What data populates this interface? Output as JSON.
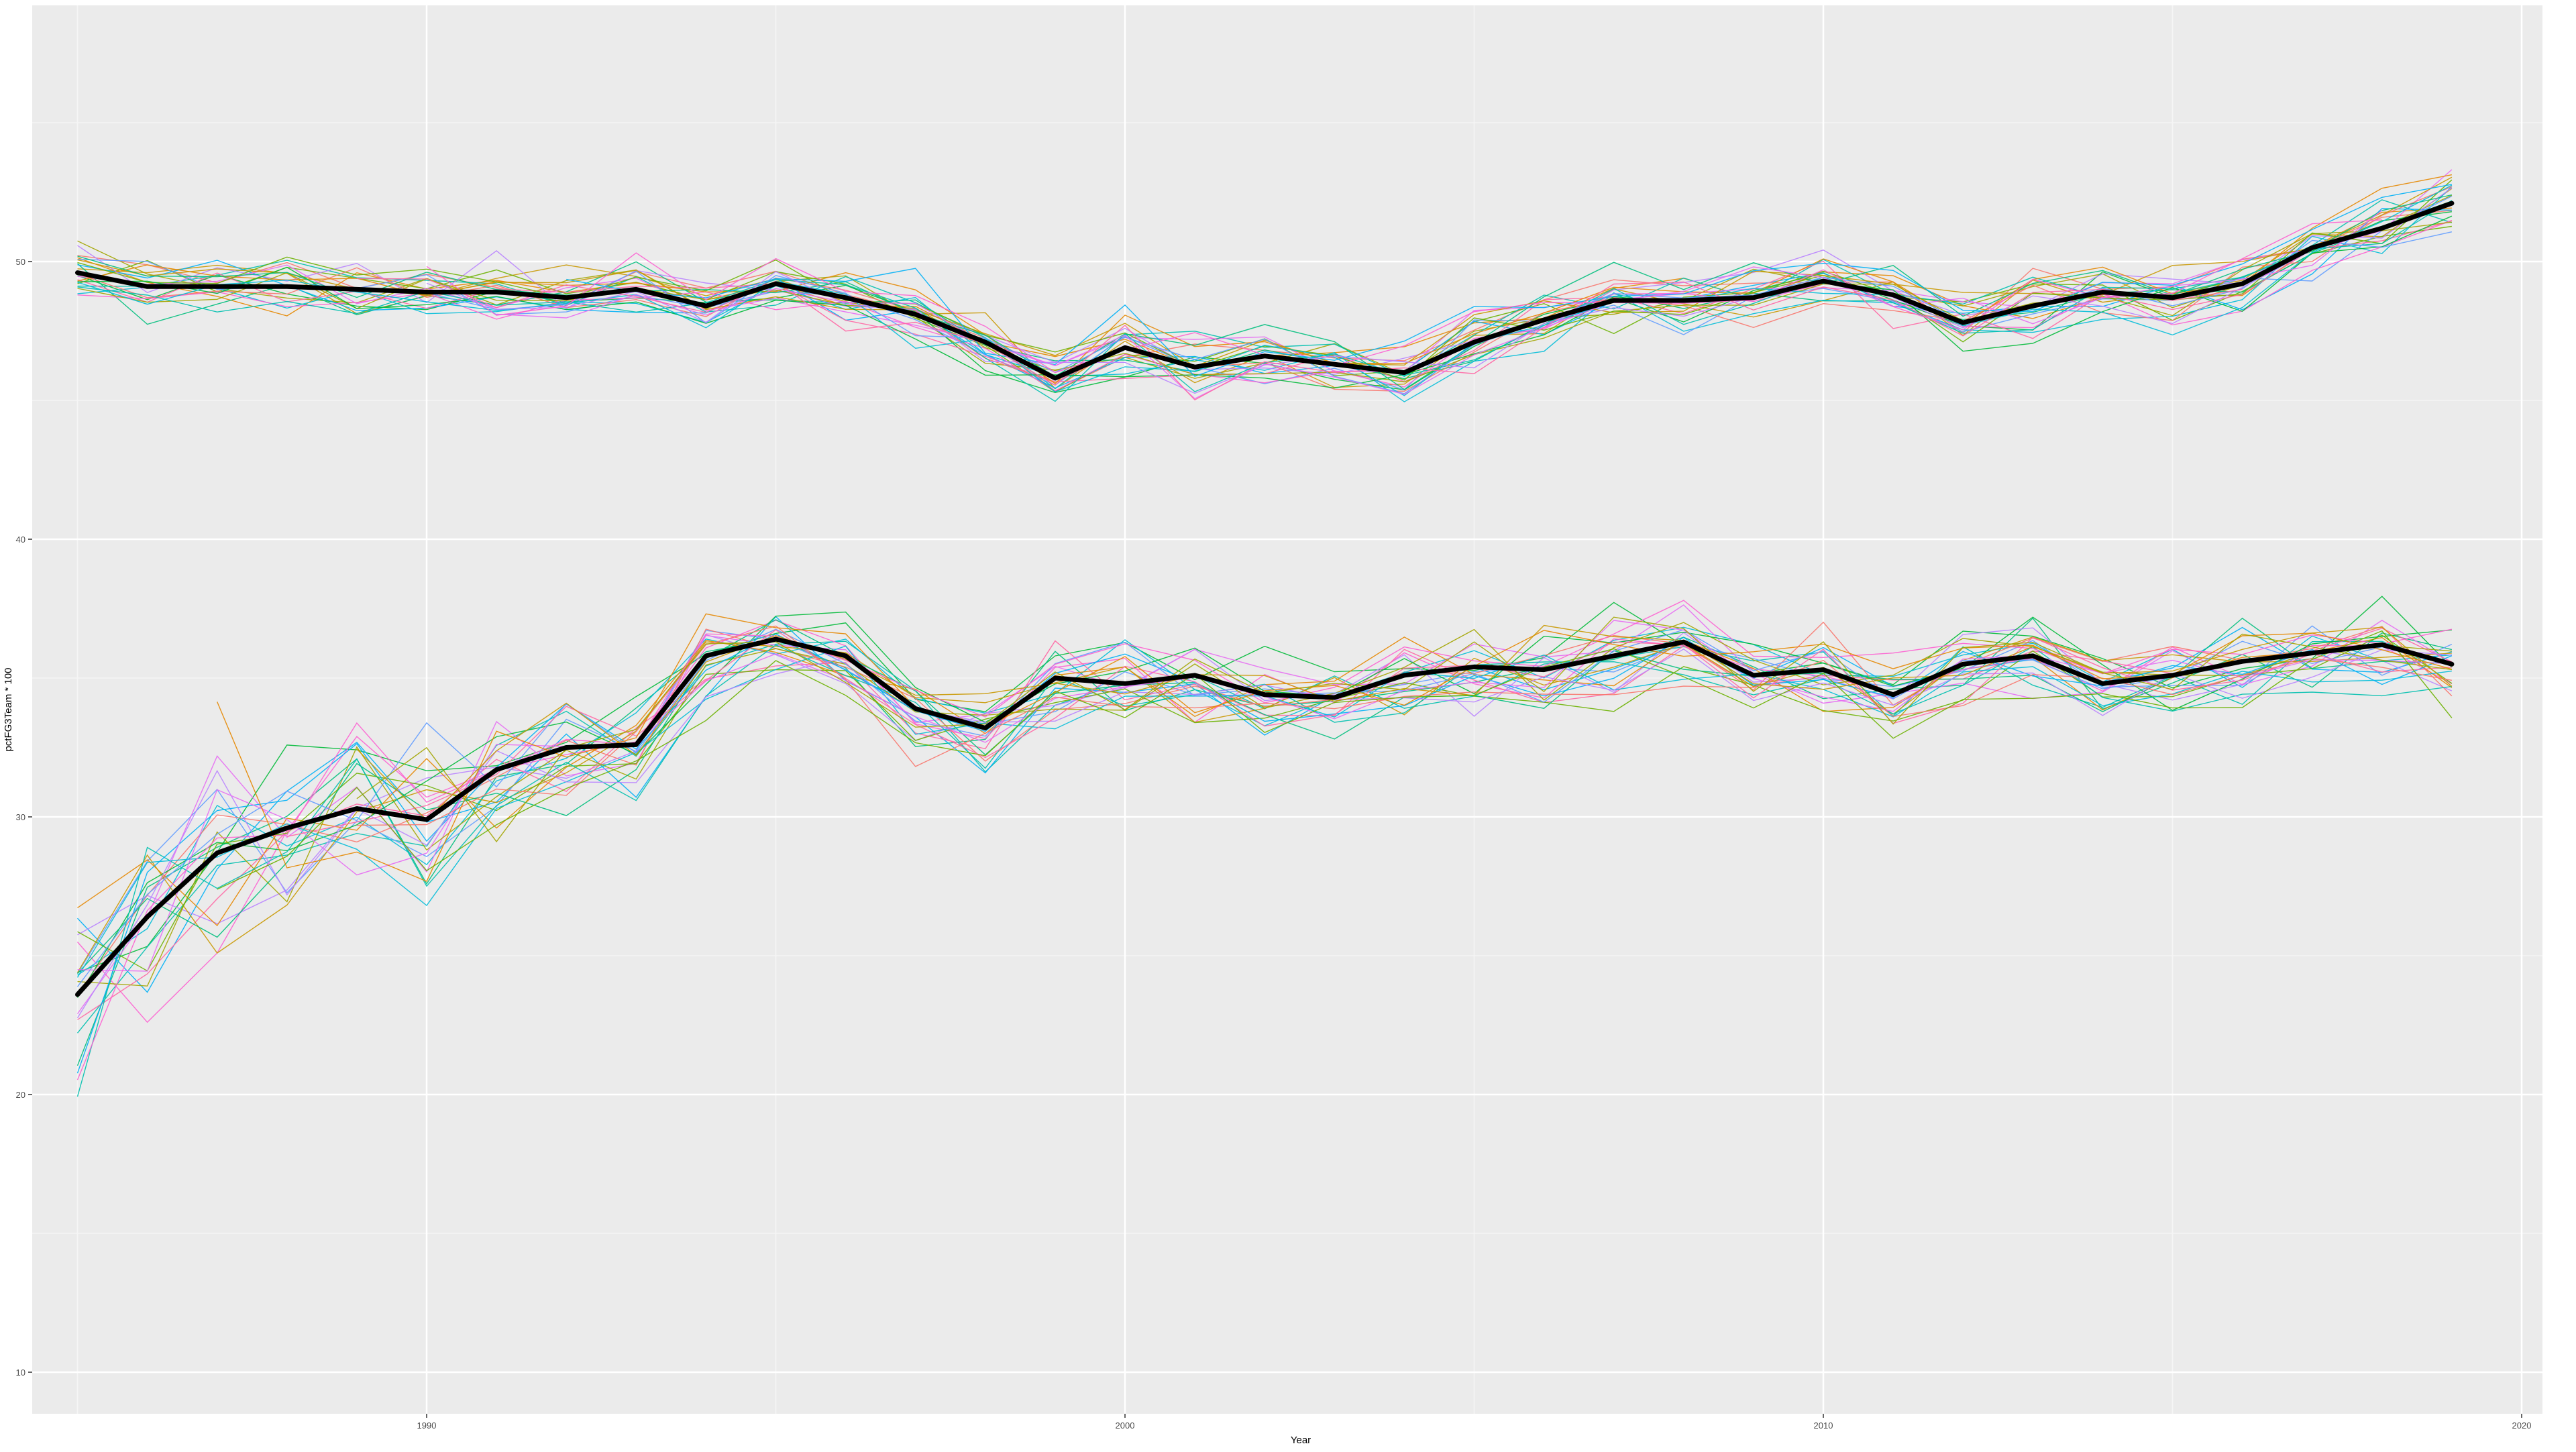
{
  "chart_data": {
    "type": "line",
    "title": "",
    "xlabel": "Year",
    "ylabel": "pctFG3Team * 100",
    "xlim": [
      1980,
      2020
    ],
    "ylim": [
      10,
      55
    ],
    "x_ticks": [
      1990,
      2000,
      2010,
      2020
    ],
    "y_ticks": [
      10,
      20,
      30,
      40,
      50
    ],
    "x_tick_labels": [
      "1990",
      "2000",
      "2010",
      "2020"
    ],
    "y_tick_labels": [
      "10",
      "20",
      "30",
      "40",
      "50"
    ],
    "grid": true,
    "legend": "none",
    "panel_background": "#ebebeb",
    "gridline_color": "#ffffff",
    "mean_line_color": "#000000",
    "series_palette": [
      "#F8766D",
      "#E58700",
      "#C99800",
      "#A3A500",
      "#6BB100",
      "#00BA38",
      "#00BF7D",
      "#00C0AF",
      "#00BCD8",
      "#00B0F6",
      "#619CFF",
      "#B983FF",
      "#E76BF3",
      "#FD61D1",
      "#FF67A4"
    ],
    "series": [
      {
        "years": [
          1985,
          1986,
          1987,
          1988,
          1989,
          1990,
          1991,
          1992,
          1993,
          1994,
          1995,
          1996,
          1997,
          1998,
          1999,
          2000,
          2001,
          2002,
          2003,
          2004,
          2005,
          2006,
          2007,
          2008,
          2009,
          2010,
          2011,
          2012,
          2013,
          2014,
          2015,
          2016,
          2017,
          2018,
          2019
        ],
        "values": [
          49.6,
          49.1,
          49.1,
          49.1,
          49.0,
          48.9,
          48.9,
          48.7,
          49.0,
          48.4,
          49.2,
          48.7,
          48.1,
          47.1,
          45.8,
          46.9,
          46.2,
          46.6,
          46.3,
          46.0,
          47.1,
          47.9,
          48.6,
          48.6,
          48.7,
          49.3,
          48.8,
          47.8,
          48.4,
          48.9,
          48.7,
          49.2,
          50.5,
          51.2,
          52.1
        ],
        "role": "mean"
      },
      {
        "years": [
          1985,
          1986,
          1987,
          1988,
          1989,
          1990,
          1991,
          1992,
          1993,
          1994,
          1995,
          1996,
          1997,
          1998,
          1999,
          2000,
          2001,
          2002,
          2003,
          2004,
          2005,
          2006,
          2007,
          2008,
          2009,
          2010,
          2011,
          2012,
          2013,
          2014,
          2015,
          2016,
          2017,
          2018,
          2019
        ],
        "values": [
          23.6,
          26.4,
          28.7,
          29.6,
          30.3,
          29.9,
          31.7,
          32.5,
          32.6,
          35.8,
          36.4,
          35.8,
          33.9,
          33.2,
          35.0,
          34.8,
          35.1,
          34.4,
          34.3,
          35.1,
          35.4,
          35.3,
          35.8,
          36.3,
          35.1,
          35.3,
          34.4,
          35.5,
          35.8,
          34.8,
          35.1,
          35.6,
          35.9,
          36.2,
          35.5
        ],
        "role": "mean"
      }
    ]
  }
}
